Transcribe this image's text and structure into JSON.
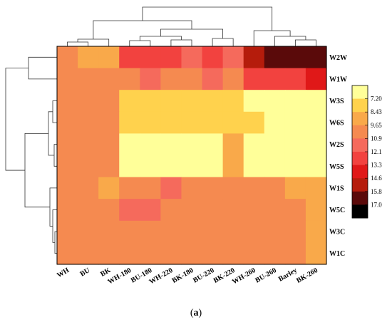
{
  "chart_data": {
    "type": "heatmap",
    "caption_letter": "a",
    "rows": [
      "W2W",
      "W1W",
      "W3S",
      "W6S",
      "W2S",
      "W5S",
      "W1S",
      "W5C",
      "W3C",
      "W1C"
    ],
    "columns": [
      "WH",
      "BU",
      "BK",
      "WH-180",
      "BU-180",
      "WH-220",
      "BK-180",
      "BU-220",
      "BK-220",
      "WH-260",
      "BU-260",
      "Barley",
      "BK-260"
    ],
    "values": [
      [
        10.2,
        9.0,
        9.0,
        12.6,
        12.6,
        12.6,
        11.6,
        12.8,
        11.6,
        15.2,
        16.2,
        16.2,
        16.2
      ],
      [
        10.2,
        10.2,
        10.2,
        10.2,
        11.4,
        10.4,
        10.4,
        11.4,
        10.2,
        12.6,
        12.6,
        12.6,
        14.0
      ],
      [
        10.2,
        10.2,
        10.2,
        8.5,
        8.5,
        8.5,
        8.5,
        8.5,
        8.5,
        7.6,
        7.6,
        7.6,
        7.6
      ],
      [
        10.2,
        10.2,
        10.2,
        8.5,
        8.5,
        8.5,
        8.5,
        8.5,
        8.5,
        8.5,
        7.6,
        7.6,
        7.6
      ],
      [
        10.2,
        10.2,
        10.2,
        7.6,
        7.6,
        7.6,
        7.6,
        7.6,
        9.4,
        7.6,
        7.6,
        7.6,
        7.6
      ],
      [
        10.2,
        10.2,
        10.2,
        7.6,
        7.6,
        7.6,
        7.6,
        7.6,
        9.4,
        7.6,
        7.6,
        7.6,
        7.6
      ],
      [
        10.2,
        10.2,
        9.0,
        10.2,
        10.2,
        11.4,
        10.2,
        10.2,
        10.2,
        10.2,
        10.2,
        9.4,
        9.4
      ],
      [
        10.2,
        10.2,
        10.2,
        11.4,
        11.4,
        10.2,
        10.2,
        10.2,
        10.2,
        10.2,
        10.2,
        10.2,
        9.4
      ],
      [
        10.2,
        10.2,
        10.2,
        10.2,
        10.2,
        10.2,
        10.2,
        10.2,
        10.2,
        10.2,
        10.2,
        10.2,
        9.4
      ],
      [
        10.2,
        10.2,
        10.2,
        10.2,
        10.2,
        10.2,
        10.2,
        10.2,
        10.2,
        10.2,
        10.2,
        10.2,
        9.4
      ]
    ],
    "colorbar": {
      "ticks": [
        "7.20",
        "8.43",
        "9.65",
        "10.9",
        "12.1",
        "13.3",
        "14.6",
        "15.8",
        "17.0"
      ],
      "range": [
        7.2,
        17.0
      ],
      "colors": [
        "#ffff99",
        "#ffd24d",
        "#f9a94a",
        "#f58a50",
        "#f56a5c",
        "#f2423f",
        "#e01818",
        "#b51c0c",
        "#5a0a0a",
        "#000000"
      ]
    },
    "row_dendrogram": "present-left",
    "column_dendrogram": "present-top"
  }
}
